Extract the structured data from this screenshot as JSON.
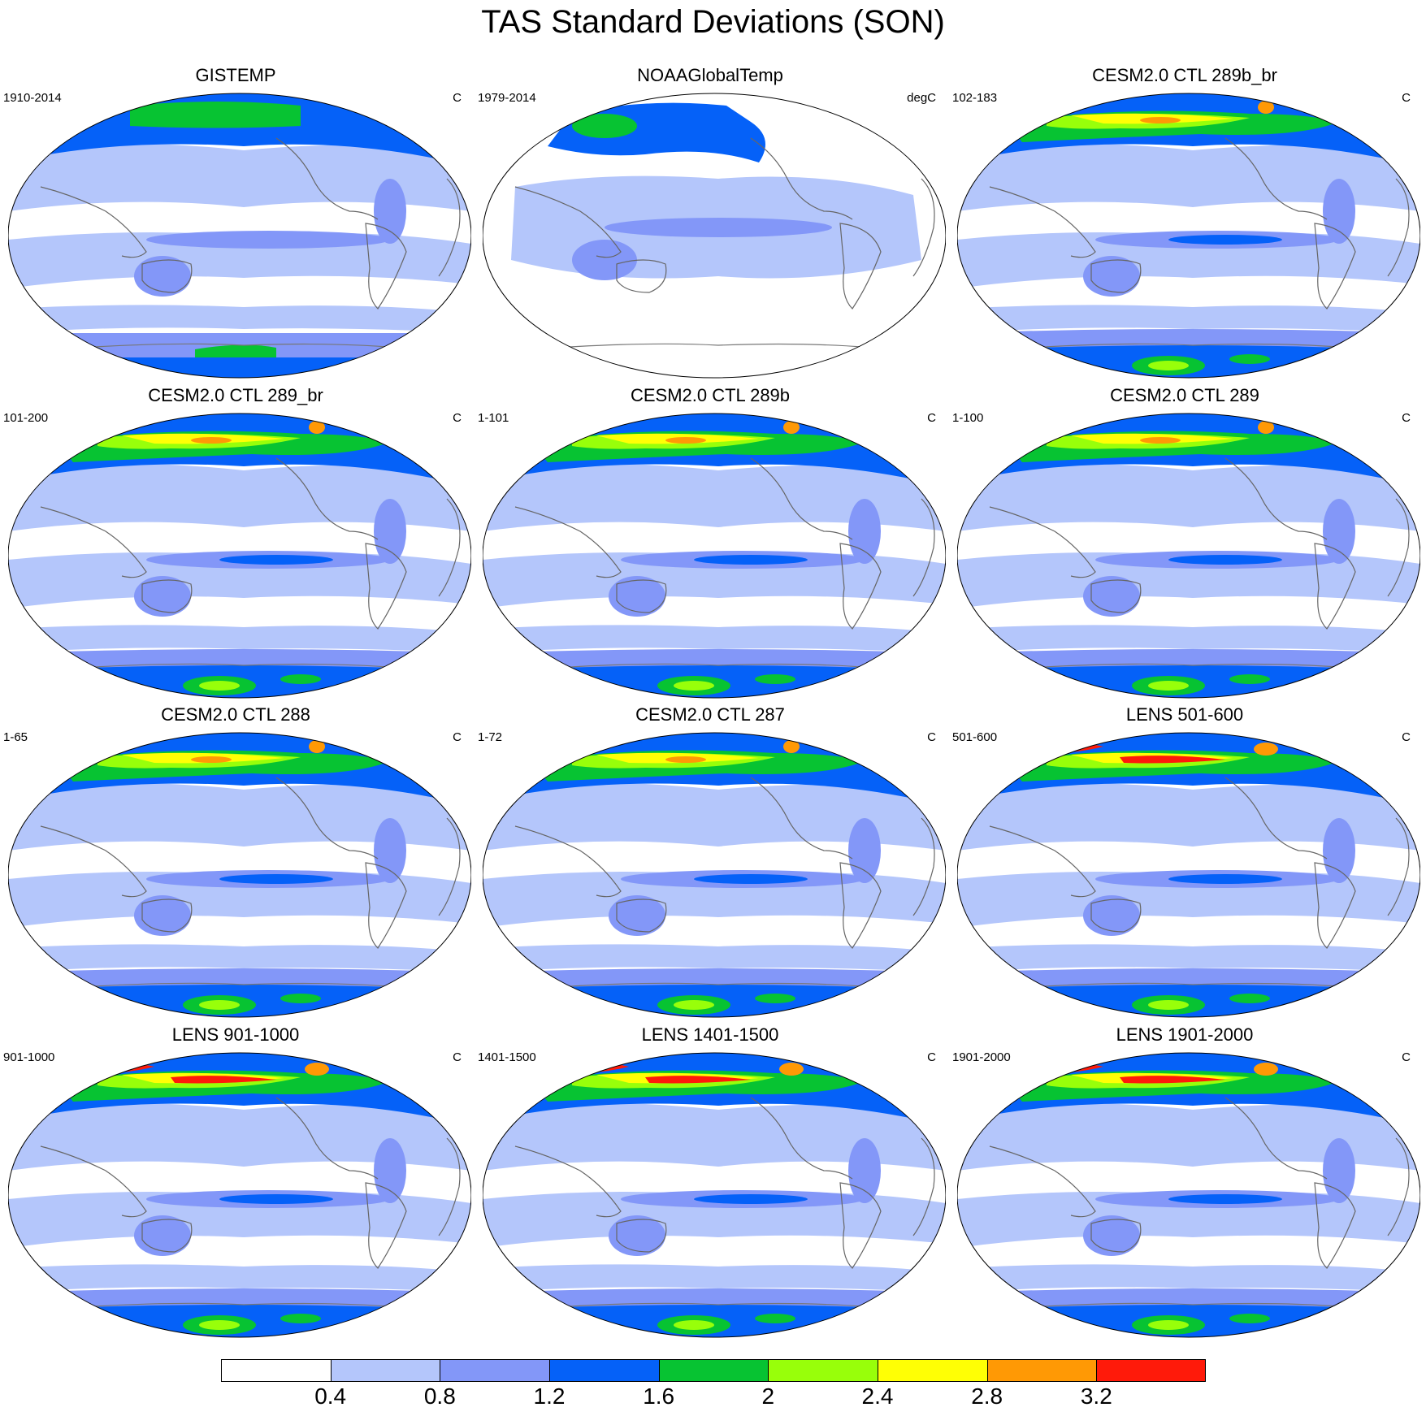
{
  "title": "TAS Standard Deviations (SON)",
  "panels": [
    {
      "title": "GISTEMP",
      "left": "1910-2014",
      "right": "C",
      "style": "obs1"
    },
    {
      "title": "NOAAGlobalTemp",
      "left": "1979-2014",
      "right": "degC",
      "style": "obs2"
    },
    {
      "title": "CESM2.0 CTL 289b_br",
      "left": "102-183",
      "right": "C",
      "style": "model"
    },
    {
      "title": "CESM2.0 CTL 289_br",
      "left": "101-200",
      "right": "C",
      "style": "model"
    },
    {
      "title": "CESM2.0 CTL 289b",
      "left": "1-101",
      "right": "C",
      "style": "model"
    },
    {
      "title": "CESM2.0 CTL 289",
      "left": "1-100",
      "right": "C",
      "style": "model"
    },
    {
      "title": "CESM2.0 CTL 288",
      "left": "1-65",
      "right": "C",
      "style": "model"
    },
    {
      "title": "CESM2.0 CTL 287",
      "left": "1-72",
      "right": "C",
      "style": "model"
    },
    {
      "title": "LENS 501-600",
      "left": "501-600",
      "right": "C",
      "style": "lens"
    },
    {
      "title": "LENS 901-1000",
      "left": "901-1000",
      "right": "C",
      "style": "lens"
    },
    {
      "title": "LENS 1401-1500",
      "left": "1401-1500",
      "right": "C",
      "style": "lens"
    },
    {
      "title": "LENS 1901-2000",
      "left": "1901-2000",
      "right": "C",
      "style": "lens"
    }
  ],
  "colorbar": {
    "colors": [
      "#ffffff",
      "#b4c6fb",
      "#8397f8",
      "#0561f8",
      "#07c332",
      "#98ff0a",
      "#ffff05",
      "#ff9905",
      "#ff1a0a"
    ],
    "labels": [
      "0.4",
      "0.8",
      "1.2",
      "1.6",
      "2",
      "2.4",
      "2.8",
      "3.2"
    ]
  }
}
